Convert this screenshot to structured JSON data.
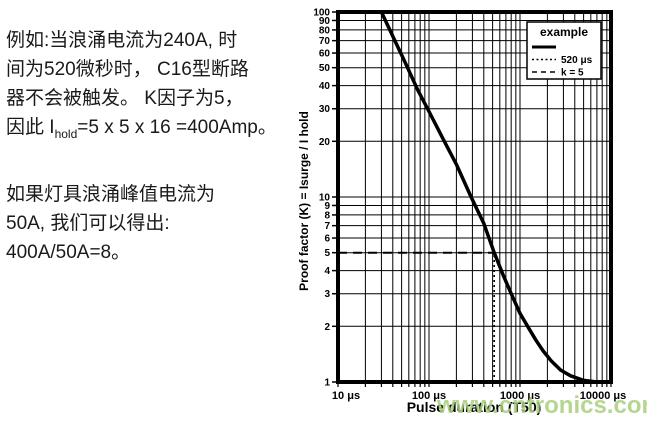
{
  "left_text": {
    "p1_line1": "例如:当浪涌电流为240A, 时",
    "p1_line2": "间为520微秒时， C16型断路",
    "p1_line3": "器不会被触发。 K因子为5，",
    "p1_line4_pre": "因此 I",
    "p1_line4_sub": "hold",
    "p1_line4_post": "=5 x 5 x 16 =400Amp。",
    "p2_line1": "如果灯具浪涌峰值电流为",
    "p2_line2": "50A, 我们可以得出:",
    "p2_line3": "400A/50A=8。"
  },
  "watermark": {
    "text": "www.cntronics.com",
    "color": "#a9cf7e"
  },
  "chart_data": {
    "type": "line",
    "title": "",
    "xlabel": "Pulse duration (T50)",
    "ylabel": "Proof factor (K) = Isurge / I hold",
    "x_scale": "log",
    "y_scale": "log",
    "xlim": [
      10,
      10000
    ],
    "ylim": [
      1,
      100
    ],
    "x_ticks": [
      10,
      100,
      1000,
      10000
    ],
    "x_tick_labels": [
      "10 μs",
      "100 μs",
      "1000 μs",
      "10000 μs"
    ],
    "y_ticks": [
      1,
      2,
      3,
      4,
      5,
      6,
      7,
      8,
      9,
      10,
      20,
      30,
      40,
      50,
      60,
      70,
      80,
      90,
      100
    ],
    "grid": "log-minor-on",
    "line_color": "#000000",
    "legend": {
      "position": "top-right",
      "title": "example",
      "items": [
        {
          "style": "solid",
          "label": ""
        },
        {
          "style": "dotted",
          "label": "520 μs"
        },
        {
          "style": "dashed",
          "label": "k = 5"
        }
      ]
    },
    "series": [
      {
        "name": "example",
        "style": "solid",
        "points": [
          [
            30,
            100
          ],
          [
            40,
            74
          ],
          [
            55,
            53
          ],
          [
            75,
            38
          ],
          [
            100,
            29
          ],
          [
            140,
            21
          ],
          [
            200,
            15
          ],
          [
            290,
            10
          ],
          [
            400,
            7.2
          ],
          [
            520,
            5
          ],
          [
            650,
            3.8
          ],
          [
            800,
            3.0
          ],
          [
            1000,
            2.35
          ],
          [
            1250,
            1.95
          ],
          [
            1500,
            1.68
          ],
          [
            1800,
            1.47
          ],
          [
            2200,
            1.3
          ],
          [
            2800,
            1.16
          ],
          [
            3600,
            1.08
          ],
          [
            5000,
            1.02
          ],
          [
            7000,
            1.0
          ],
          [
            10000,
            1.0
          ]
        ]
      },
      {
        "name": "k = 5",
        "style": "dashed",
        "points": [
          [
            10,
            5
          ],
          [
            520,
            5
          ]
        ]
      },
      {
        "name": "520 μs",
        "style": "dotted",
        "points": [
          [
            520,
            1
          ],
          [
            520,
            5
          ]
        ]
      }
    ]
  }
}
